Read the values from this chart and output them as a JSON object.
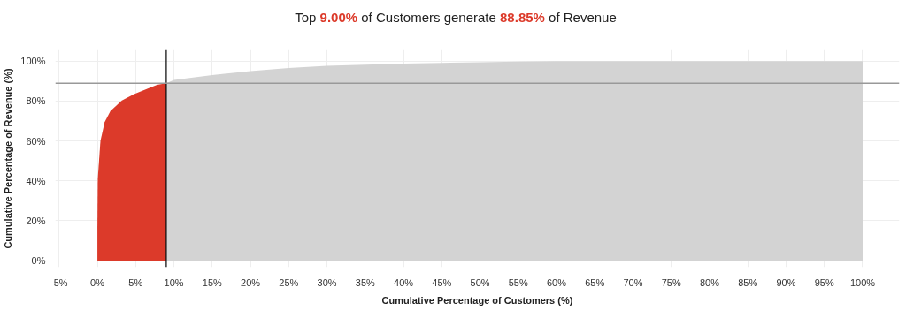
{
  "chart_data": {
    "type": "area",
    "title": "Top 9.00% of Customers generate 88.85% of Revenue",
    "xlabel": "Cumulative Percentage of Customers (%)",
    "ylabel": "Cumulative Percentage of Revenue (%)",
    "series": [
      {
        "color": "#dc3a2a",
        "x": [
          0,
          0,
          0.05,
          0.4,
          0.95,
          1.7,
          3.2,
          4.8,
          6.3,
          7.8,
          9
        ],
        "values": [
          0,
          16,
          41,
          60,
          69.4,
          74.9,
          80.3,
          83.5,
          85.8,
          88.1,
          88.9
        ]
      },
      {
        "color": "#d3d3d3",
        "x": [
          9,
          10,
          15,
          20,
          25,
          30,
          35,
          40,
          45,
          50,
          55,
          60,
          100
        ],
        "values": [
          88.9,
          90.5,
          93,
          95,
          96.5,
          97.6,
          98.2,
          98.7,
          99.1,
          99.4,
          99.7,
          100,
          100
        ]
      }
    ],
    "xlim": [
      -5.5,
      104.8
    ],
    "ylim": [
      -3.3,
      105.6
    ],
    "xticks": [
      {
        "value": -5,
        "label": "-5%"
      },
      {
        "value": 0,
        "label": "0%"
      },
      {
        "value": 5,
        "label": "5%"
      },
      {
        "value": 10,
        "label": "10%"
      },
      {
        "value": 15,
        "label": "15%"
      },
      {
        "value": 20,
        "label": "20%"
      },
      {
        "value": 25,
        "label": "25%"
      },
      {
        "value": 30,
        "label": "30%"
      },
      {
        "value": 35,
        "label": "35%"
      },
      {
        "value": 40,
        "label": "40%"
      },
      {
        "value": 45,
        "label": "45%"
      },
      {
        "value": 50,
        "label": "50%"
      },
      {
        "value": 55,
        "label": "55%"
      },
      {
        "value": 60,
        "label": "60%"
      },
      {
        "value": 65,
        "label": "65%"
      },
      {
        "value": 70,
        "label": "70%"
      },
      {
        "value": 75,
        "label": "75%"
      },
      {
        "value": 80,
        "label": "80%"
      },
      {
        "value": 85,
        "label": "85%"
      },
      {
        "value": 90,
        "label": "90%"
      },
      {
        "value": 95,
        "label": "95%"
      },
      {
        "value": 100,
        "label": "100%"
      }
    ],
    "yticks": [
      {
        "value": 0,
        "label": "0%"
      },
      {
        "value": 20,
        "label": "20%"
      },
      {
        "value": 40,
        "label": "40%"
      },
      {
        "value": 60,
        "label": "60%"
      },
      {
        "value": 80,
        "label": "80%"
      },
      {
        "value": 100,
        "label": "100%"
      }
    ],
    "ref_lines": [
      {
        "axis": "x",
        "value": 9,
        "color": "#000000"
      },
      {
        "axis": "y",
        "value": 88.9,
        "color": "#999999"
      }
    ],
    "grid": true
  }
}
